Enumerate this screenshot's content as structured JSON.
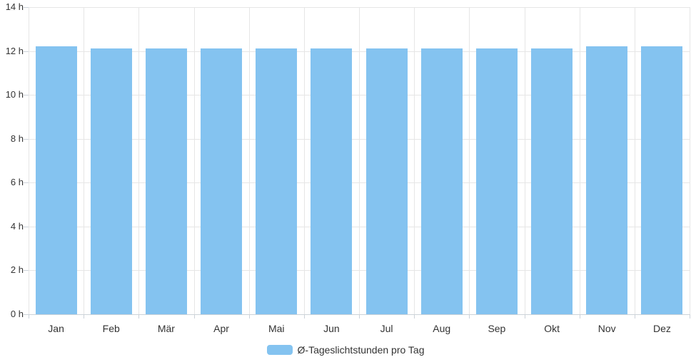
{
  "chart_data": {
    "type": "bar",
    "categories": [
      "Jan",
      "Feb",
      "Mär",
      "Apr",
      "Mai",
      "Jun",
      "Jul",
      "Aug",
      "Sep",
      "Okt",
      "Nov",
      "Dez"
    ],
    "series": [
      {
        "name": "Ø-Tageslichtstunden pro Tag",
        "values": [
          12.2,
          12.1,
          12.1,
          12.1,
          12.1,
          12.1,
          12.1,
          12.1,
          12.1,
          12.1,
          12.2,
          12.2
        ],
        "color": "#84C3F0"
      }
    ],
    "xlabel": "",
    "ylabel": "",
    "ylim": [
      0,
      14
    ],
    "y_ticks": [
      0,
      2,
      4,
      6,
      8,
      10,
      12,
      14
    ],
    "y_tick_suffix": " h",
    "grid": true,
    "legend_position": "bottom"
  },
  "colors": {
    "bar": "#84C3F0",
    "gridline": "#e6e6e6",
    "axis_line": "#ccd2d9",
    "text": "#333333",
    "background": "#ffffff"
  }
}
